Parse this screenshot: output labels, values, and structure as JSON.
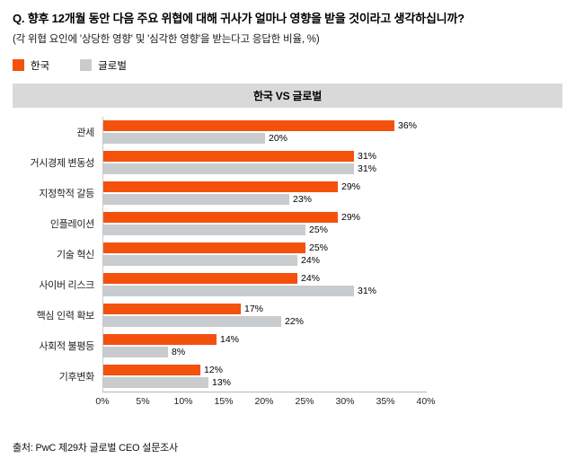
{
  "header": {
    "title": "Q. 향후 12개월 동안 다음 주요 위협에 대해 귀사가 얼마나 영향을 받을 것이라고 생각하십니까?",
    "subtitle": "(각 위협 요인에 '상당한 영향' 및 '심각한 영향'을 받는다고 응답한 비율, %)"
  },
  "legend": [
    {
      "label": "한국",
      "color": "#F4510D"
    },
    {
      "label": "글로벌",
      "color": "#C8CCCF"
    }
  ],
  "band_title": "한국 VS 글로벌",
  "source": "출처: PwC 제29차 글로벌 CEO 설문조사",
  "colors": {
    "korea": "#F4510D",
    "global": "#C8CCCF",
    "band_background": "#D9D9D9"
  },
  "chart_data": {
    "type": "bar",
    "orientation": "horizontal",
    "title": "한국 VS 글로벌",
    "categories": [
      "관세",
      "거시경제 변동성",
      "지정학적 갈등",
      "인플레이션",
      "기술 혁신",
      "사이버 리스크",
      "핵심 인력 확보",
      "사회적 불평등",
      "기후변화"
    ],
    "series": [
      {
        "name": "한국",
        "color": "#F4510D",
        "values": [
          36,
          31,
          29,
          29,
          25,
          24,
          17,
          14,
          12
        ]
      },
      {
        "name": "글로벌",
        "color": "#C8CCCF",
        "values": [
          20,
          31,
          23,
          25,
          24,
          31,
          22,
          8,
          13
        ]
      }
    ],
    "xlim": [
      0,
      40
    ],
    "xticks": [
      "0%",
      "5%",
      "10%",
      "15%",
      "20%",
      "25%",
      "30%",
      "35%",
      "40%"
    ],
    "value_suffix": "%",
    "value_labels": true,
    "grid": false,
    "legend_position": "top-left"
  }
}
